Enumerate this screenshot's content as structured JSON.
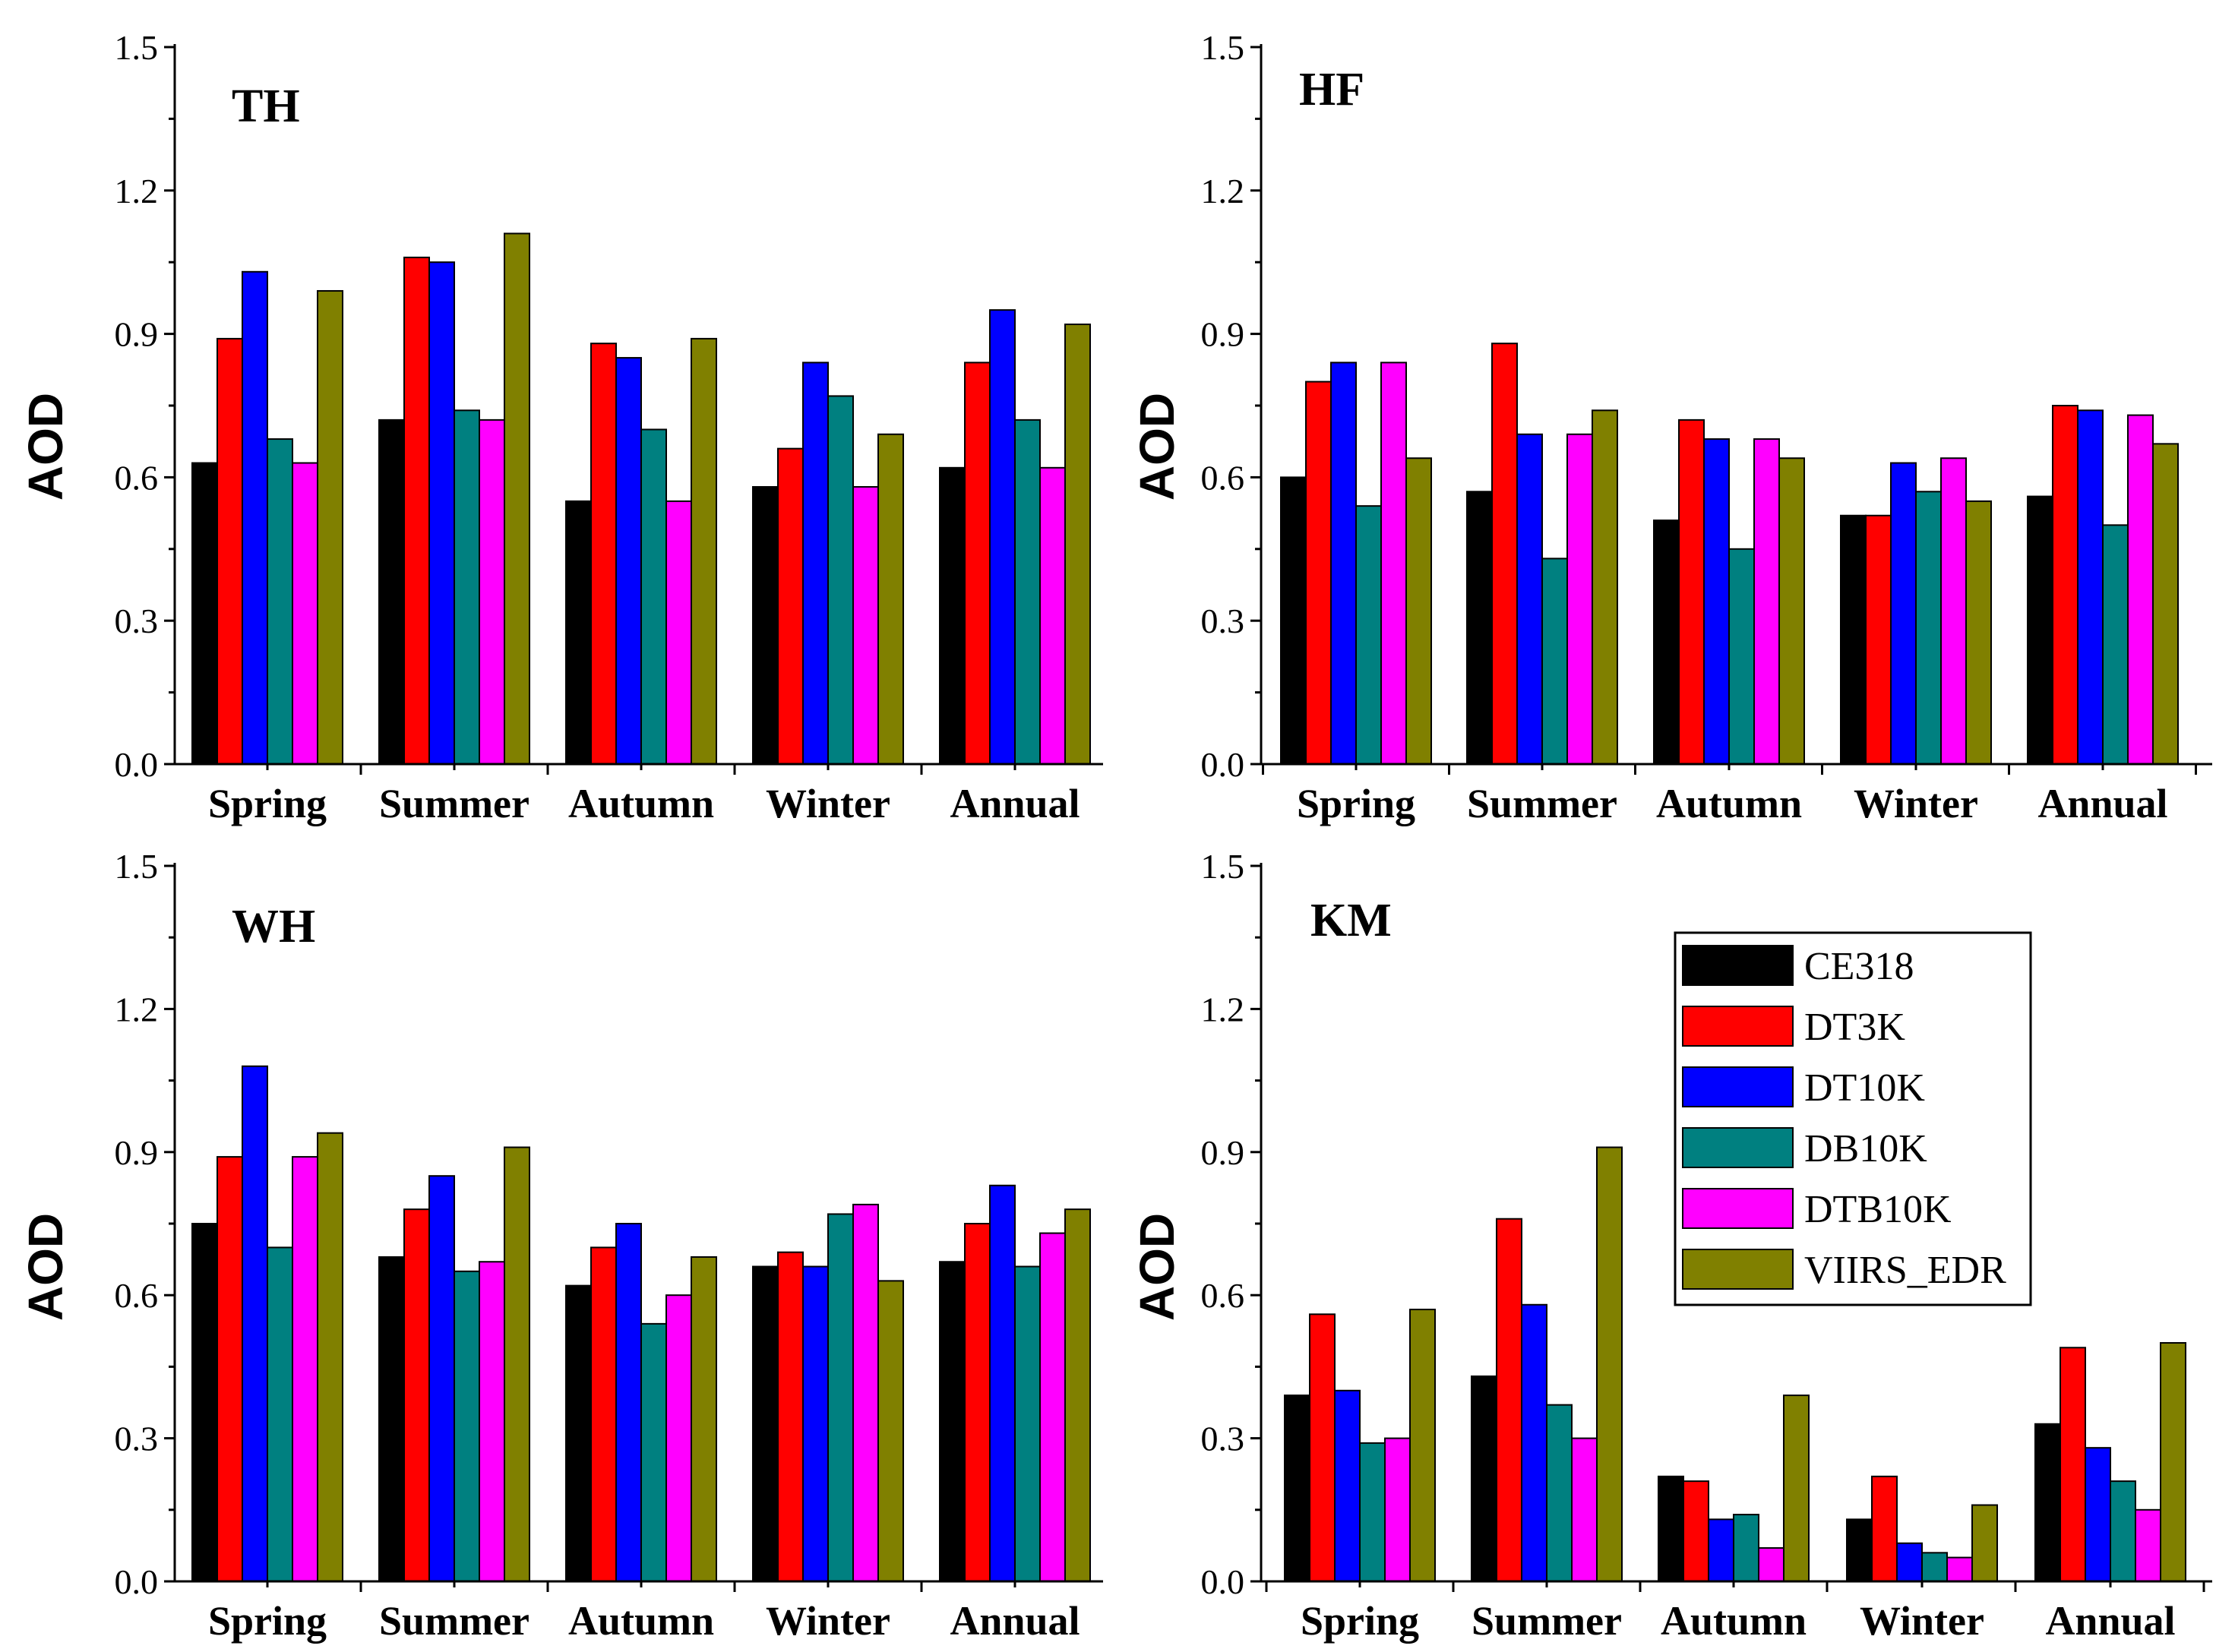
{
  "chart_data": [
    {
      "type": "bar",
      "title": "TH",
      "xlabel": "",
      "ylabel": "AOD",
      "ylim": [
        0.0,
        1.5
      ],
      "yticks": [
        "0.0",
        "0.3",
        "0.6",
        "0.9",
        "1.2",
        "1.5"
      ],
      "categories": [
        "Spring",
        "Summer",
        "Autumn",
        "Winter",
        "Annual"
      ],
      "series": [
        {
          "name": "CE318",
          "values": [
            0.63,
            0.72,
            0.55,
            0.58,
            0.62
          ]
        },
        {
          "name": "DT3K",
          "values": [
            0.89,
            1.06,
            0.88,
            0.66,
            0.84
          ]
        },
        {
          "name": "DT10K",
          "values": [
            1.03,
            1.05,
            0.85,
            0.84,
            0.95
          ]
        },
        {
          "name": "DB10K",
          "values": [
            0.68,
            0.74,
            0.7,
            0.77,
            0.72
          ]
        },
        {
          "name": "DTB10K",
          "values": [
            0.63,
            0.72,
            0.55,
            0.58,
            0.62
          ]
        },
        {
          "name": "VIIRS_EDR",
          "values": [
            0.99,
            1.11,
            0.89,
            0.69,
            0.92
          ]
        }
      ]
    },
    {
      "type": "bar",
      "title": "HF",
      "xlabel": "",
      "ylabel": "AOD",
      "ylim": [
        0.0,
        1.5
      ],
      "yticks": [
        "0.0",
        "0.3",
        "0.6",
        "0.9",
        "1.2",
        "1.5"
      ],
      "categories": [
        "Spring",
        "Summer",
        "Autumn",
        "Winter",
        "Annual"
      ],
      "series": [
        {
          "name": "CE318",
          "values": [
            0.6,
            0.57,
            0.51,
            0.52,
            0.56
          ]
        },
        {
          "name": "DT3K",
          "values": [
            0.8,
            0.88,
            0.72,
            0.52,
            0.75
          ]
        },
        {
          "name": "DT10K",
          "values": [
            0.84,
            0.69,
            0.68,
            0.63,
            0.74
          ]
        },
        {
          "name": "DB10K",
          "values": [
            0.54,
            0.43,
            0.45,
            0.57,
            0.5
          ]
        },
        {
          "name": "DTB10K",
          "values": [
            0.84,
            0.69,
            0.68,
            0.64,
            0.73
          ]
        },
        {
          "name": "VIIRS_EDR",
          "values": [
            0.64,
            0.74,
            0.64,
            0.55,
            0.67
          ]
        }
      ]
    },
    {
      "type": "bar",
      "title": "WH",
      "xlabel": "",
      "ylabel": "AOD",
      "ylim": [
        0.0,
        1.5
      ],
      "yticks": [
        "0.0",
        "0.3",
        "0.6",
        "0.9",
        "1.2",
        "1.5"
      ],
      "categories": [
        "Spring",
        "Summer",
        "Autumn",
        "Winter",
        "Annual"
      ],
      "series": [
        {
          "name": "CE318",
          "values": [
            0.75,
            0.68,
            0.62,
            0.66,
            0.67
          ]
        },
        {
          "name": "DT3K",
          "values": [
            0.89,
            0.78,
            0.7,
            0.69,
            0.75
          ]
        },
        {
          "name": "DT10K",
          "values": [
            1.08,
            0.85,
            0.75,
            0.66,
            0.83
          ]
        },
        {
          "name": "DB10K",
          "values": [
            0.7,
            0.65,
            0.54,
            0.77,
            0.66
          ]
        },
        {
          "name": "DTB10K",
          "values": [
            0.89,
            0.67,
            0.6,
            0.79,
            0.73
          ]
        },
        {
          "name": "VIIRS_EDR",
          "values": [
            0.94,
            0.91,
            0.68,
            0.63,
            0.78
          ]
        }
      ]
    },
    {
      "type": "bar",
      "title": "KM",
      "xlabel": "",
      "ylabel": "AOD",
      "ylim": [
        0.0,
        1.5
      ],
      "yticks": [
        "0.0",
        "0.3",
        "0.6",
        "0.9",
        "1.2",
        "1.5"
      ],
      "categories": [
        "Spring",
        "Summer",
        "Autumn",
        "Winter",
        "Annual"
      ],
      "legend_position": "top-right",
      "series": [
        {
          "name": "CE318",
          "values": [
            0.39,
            0.43,
            0.22,
            0.13,
            0.33
          ]
        },
        {
          "name": "DT3K",
          "values": [
            0.56,
            0.76,
            0.21,
            0.22,
            0.49
          ]
        },
        {
          "name": "DT10K",
          "values": [
            0.4,
            0.58,
            0.13,
            0.08,
            0.28
          ]
        },
        {
          "name": "DB10K",
          "values": [
            0.29,
            0.37,
            0.14,
            0.06,
            0.21
          ]
        },
        {
          "name": "DTB10K",
          "values": [
            0.3,
            0.3,
            0.07,
            0.05,
            0.15
          ]
        },
        {
          "name": "VIIRS_EDR",
          "values": [
            0.57,
            0.91,
            0.39,
            0.16,
            0.5
          ]
        }
      ]
    }
  ],
  "legend": {
    "items": [
      "CE318",
      "DT3K",
      "DT10K",
      "DB10K",
      "DTB10K",
      "VIIRS_EDR"
    ]
  },
  "colors": {
    "CE318": "#000000",
    "DT3K": "#ff0000",
    "DT10K": "#0000ff",
    "DB10K": "#008080",
    "DTB10K": "#ff00ff",
    "VIIRS_EDR": "#808000"
  }
}
